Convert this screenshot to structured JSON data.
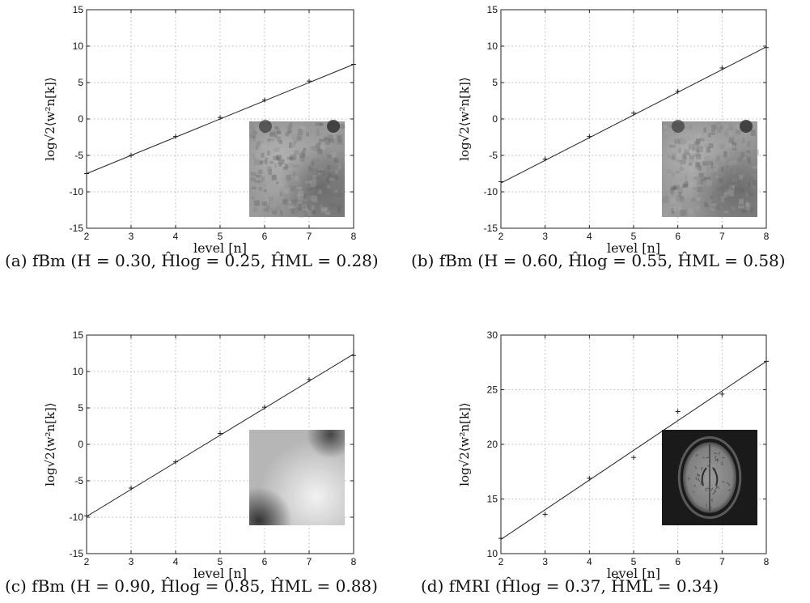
{
  "chart_data": [
    {
      "type": "line",
      "caption_prefix": "(a) fBm (",
      "caption_body": "H = 0.30, Ĥlog = 0.25, ĤML = 0.28)",
      "xlabel": "level [n]",
      "ylabel": "log√2⟨w²n[k]⟩",
      "xlim": [
        2,
        8
      ],
      "ylim": [
        -15,
        15
      ],
      "xticks": [
        2,
        3,
        4,
        5,
        6,
        7,
        8
      ],
      "yticks": [
        -15,
        -10,
        -5,
        0,
        5,
        10,
        15
      ],
      "grid": true,
      "inset": "fbm-texture",
      "series": [
        {
          "kind": "markers",
          "x": [
            2,
            3,
            4,
            5,
            6,
            7,
            8
          ],
          "y": [
            -7.5,
            -5.0,
            -2.4,
            0.2,
            2.6,
            5.2,
            7.5
          ]
        },
        {
          "kind": "fit-line",
          "x": [
            2,
            8
          ],
          "y": [
            -7.5,
            7.5
          ]
        }
      ]
    },
    {
      "type": "line",
      "caption_prefix": "(b) fBm (",
      "caption_body": "H = 0.60, Ĥlog = 0.55, ĤML = 0.58)",
      "xlabel": "level [n]",
      "ylabel": "log√2⟨w²n[k]⟩",
      "xlim": [
        2,
        8
      ],
      "ylim": [
        -15,
        15
      ],
      "xticks": [
        2,
        3,
        4,
        5,
        6,
        7,
        8
      ],
      "yticks": [
        -15,
        -10,
        -5,
        0,
        5,
        10,
        15
      ],
      "grid": true,
      "inset": "fbm-texture",
      "series": [
        {
          "kind": "markers",
          "x": [
            2,
            3,
            4,
            5,
            6,
            7,
            8
          ],
          "y": [
            -8.6,
            -5.5,
            -2.4,
            0.8,
            3.8,
            7.0,
            9.8
          ]
        },
        {
          "kind": "fit-line",
          "x": [
            2,
            8
          ],
          "y": [
            -8.8,
            9.9
          ]
        }
      ]
    },
    {
      "type": "line",
      "caption_prefix": "(c) fBm (",
      "caption_body": "H = 0.90, Ĥlog = 0.85, ĤML = 0.88)",
      "xlabel": "level [n]",
      "ylabel": "log√2⟨w²n[k]⟩",
      "xlim": [
        2,
        8
      ],
      "ylim": [
        -15,
        15
      ],
      "xticks": [
        2,
        3,
        4,
        5,
        6,
        7,
        8
      ],
      "yticks": [
        -15,
        -10,
        -5,
        0,
        5,
        10,
        15
      ],
      "grid": true,
      "inset": "fbm-smooth",
      "series": [
        {
          "kind": "markers",
          "x": [
            2,
            3,
            4,
            5,
            6,
            7,
            8
          ],
          "y": [
            -9.8,
            -6.0,
            -2.4,
            1.5,
            5.1,
            8.9,
            12.2
          ]
        },
        {
          "kind": "fit-line",
          "x": [
            2,
            8
          ],
          "y": [
            -9.9,
            12.4
          ]
        }
      ]
    },
    {
      "type": "line",
      "caption_prefix": "(d) fMRI (",
      "caption_body": "Ĥlog = 0.37, ĤML = 0.34)",
      "xlabel": "level [n]",
      "ylabel": "log√2⟨w²n[k]⟩",
      "xlim": [
        2,
        8
      ],
      "ylim": [
        10,
        30
      ],
      "xticks": [
        2,
        3,
        4,
        5,
        6,
        7,
        8
      ],
      "yticks": [
        10,
        15,
        20,
        25,
        30
      ],
      "grid": true,
      "inset": "fmri-brain",
      "series": [
        {
          "kind": "markers",
          "x": [
            2,
            3,
            4,
            5,
            6,
            7,
            8
          ],
          "y": [
            11.4,
            13.6,
            16.9,
            18.8,
            23.0,
            24.6,
            27.6
          ]
        },
        {
          "kind": "fit-line",
          "x": [
            2,
            8
          ],
          "y": [
            11.3,
            27.6
          ]
        }
      ]
    }
  ]
}
